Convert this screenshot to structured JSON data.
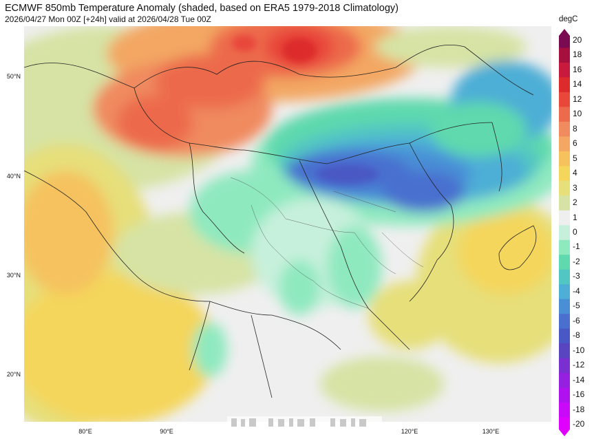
{
  "header": {
    "title": "ECMWF 850mb Temperature Anomaly (shaded, based on ERA5 1979-2018 Climatology)",
    "subtitle": "2026/04/27 Mon 00Z [+24h] valid at 2026/04/28 Tue 00Z"
  },
  "map": {
    "lat_labels": [
      "50°N",
      "40°N",
      "30°N",
      "20°N"
    ],
    "lon_labels": [
      "80°E",
      "90°E",
      "120°E",
      "130°E"
    ],
    "region": "East Asia"
  },
  "colorbar": {
    "unit": "degC",
    "levels": [
      "20",
      "18",
      "16",
      "14",
      "12",
      "10",
      "8",
      "6",
      "5",
      "4",
      "3",
      "2",
      "1",
      "0",
      "-1",
      "-2",
      "-3",
      "-4",
      "-5",
      "-6",
      "-8",
      "-10",
      "-12",
      "-14",
      "-16",
      "-18",
      "-20"
    ],
    "colors": [
      "#7a0a52",
      "#a5103f",
      "#c81a3c",
      "#dd2b2b",
      "#e8473a",
      "#ec6b4c",
      "#f08a5f",
      "#f3a763",
      "#f5c25e",
      "#f4d65c",
      "#e6df7a",
      "#d6e3a4",
      "#efefef",
      "#c7f0dc",
      "#8fe9bf",
      "#5fd9ad",
      "#52c6c2",
      "#4eaed6",
      "#4a8fd6",
      "#4a6fcf",
      "#4958c4",
      "#5a45c0",
      "#7a2fd0",
      "#9620e0",
      "#b012ef",
      "#c80af8",
      "#e000ff"
    ]
  }
}
